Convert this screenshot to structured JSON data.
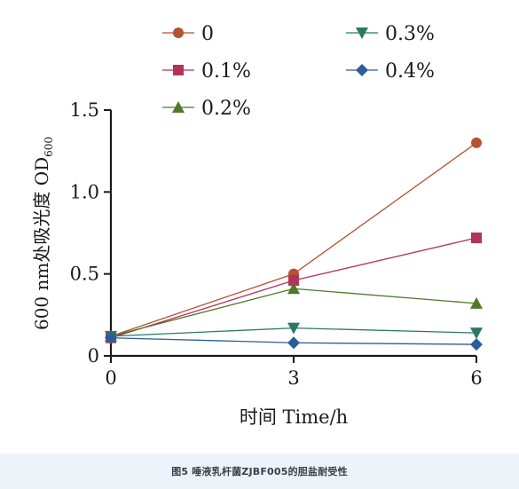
{
  "chart_data": {
    "type": "line",
    "x": [
      0,
      3,
      6
    ],
    "xticks": [
      "0",
      "3",
      "6"
    ],
    "xlabel": "时间 Time/h",
    "ylabel_prefix": "600 nm处吸光度 OD",
    "ylabel_sub": "600",
    "ylim": [
      0,
      1.5
    ],
    "yticks": [
      "0",
      "0.5",
      "1.0",
      "1.5"
    ],
    "grid": false,
    "legend_position": "top",
    "series": [
      {
        "name": "0",
        "color": "#b5522f",
        "marker": "circle",
        "values": [
          0.12,
          0.5,
          1.3
        ]
      },
      {
        "name": "0.1%",
        "color": "#b2325a",
        "marker": "square",
        "values": [
          0.11,
          0.46,
          0.72
        ]
      },
      {
        "name": "0.2%",
        "color": "#4e7a28",
        "marker": "triangle-up",
        "values": [
          0.12,
          0.41,
          0.32
        ]
      },
      {
        "name": "0.3%",
        "color": "#2a7a62",
        "marker": "triangle-down",
        "values": [
          0.12,
          0.17,
          0.14
        ]
      },
      {
        "name": "0.4%",
        "color": "#2e5c9a",
        "marker": "diamond",
        "values": [
          0.11,
          0.08,
          0.07
        ]
      }
    ]
  },
  "caption": "图5 唾液乳杆菌ZJBF005的胆盐耐受性"
}
